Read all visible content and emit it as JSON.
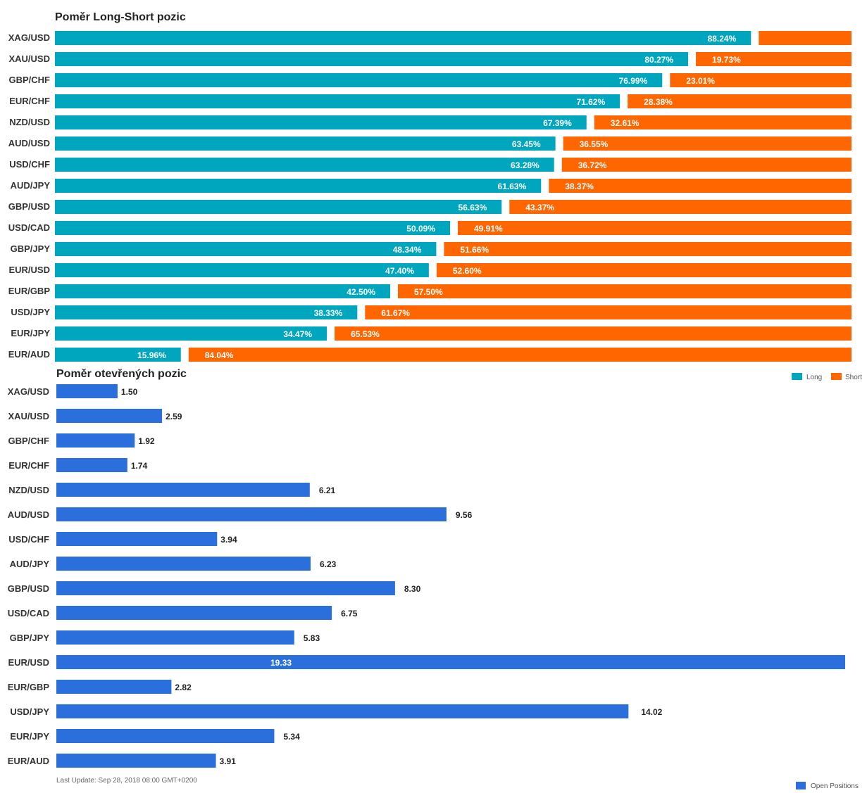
{
  "colors": {
    "long": "#00A6BE",
    "short": "#FF6600",
    "open_positions": "#2A6FDB"
  },
  "legend": {
    "long": "Long",
    "short": "Short",
    "open_positions": "Open Positions"
  },
  "footer": {
    "last_update": "Last Update: Sep 28, 2018 08:00 GMT+0200"
  },
  "chart_data": [
    {
      "type": "bar",
      "orientation": "horizontal",
      "stacked": true,
      "title": "Poměr Long-Short pozic",
      "categories": [
        "XAG/USD",
        "XAU/USD",
        "GBP/CHF",
        "EUR/CHF",
        "NZD/USD",
        "AUD/USD",
        "USD/CHF",
        "AUD/JPY",
        "GBP/USD",
        "USD/CAD",
        "GBP/JPY",
        "EUR/USD",
        "EUR/GBP",
        "USD/JPY",
        "EUR/JPY",
        "EUR/AUD"
      ],
      "series": [
        {
          "name": "Long",
          "values": [
            88.24,
            80.27,
            76.99,
            71.62,
            67.39,
            63.45,
            63.28,
            61.63,
            56.63,
            50.09,
            48.34,
            47.4,
            42.5,
            38.33,
            34.47,
            15.96
          ]
        },
        {
          "name": "Short",
          "values": [
            11.76,
            19.73,
            23.01,
            28.38,
            32.61,
            36.55,
            36.72,
            38.37,
            43.37,
            49.91,
            51.66,
            52.6,
            57.5,
            61.67,
            65.53,
            84.04
          ]
        }
      ],
      "labels": {
        "long": [
          "88.24%",
          "80.27%",
          "76.99%",
          "71.62%",
          "67.39%",
          "63.45%",
          "63.28%",
          "61.63%",
          "56.63%",
          "50.09%",
          "48.34%",
          "47.40%",
          "42.50%",
          "38.33%",
          "34.47%",
          "15.96%"
        ],
        "short": [
          "",
          "19.73%",
          "23.01%",
          "28.38%",
          "32.61%",
          "36.55%",
          "36.72%",
          "38.37%",
          "43.37%",
          "49.91%",
          "51.66%",
          "52.60%",
          "57.50%",
          "61.67%",
          "65.53%",
          "84.04%"
        ]
      },
      "xlim": [
        0,
        100
      ],
      "grid": false,
      "legend_position": "bottom-right"
    },
    {
      "type": "bar",
      "orientation": "horizontal",
      "title": "Poměr otevřených pozic",
      "categories": [
        "XAG/USD",
        "XAU/USD",
        "GBP/CHF",
        "EUR/CHF",
        "NZD/USD",
        "AUD/USD",
        "USD/CHF",
        "AUD/JPY",
        "GBP/USD",
        "USD/CAD",
        "GBP/JPY",
        "EUR/USD",
        "EUR/GBP",
        "USD/JPY",
        "EUR/JPY",
        "EUR/AUD"
      ],
      "series": [
        {
          "name": "Open Positions",
          "values": [
            1.5,
            2.59,
            1.92,
            1.74,
            6.21,
            9.56,
            3.94,
            6.23,
            8.3,
            6.75,
            5.83,
            19.33,
            2.82,
            14.02,
            5.34,
            3.91
          ]
        }
      ],
      "labels": [
        "1.50",
        "2.59",
        "1.92",
        "1.74",
        "6.21",
        "9.56",
        "3.94",
        "6.23",
        "8.30",
        "6.75",
        "5.83",
        "19.33",
        "2.82",
        "14.02",
        "5.34",
        "3.91"
      ],
      "xlim": [
        0,
        19.33
      ],
      "grid": false,
      "legend_position": "bottom-right"
    }
  ]
}
